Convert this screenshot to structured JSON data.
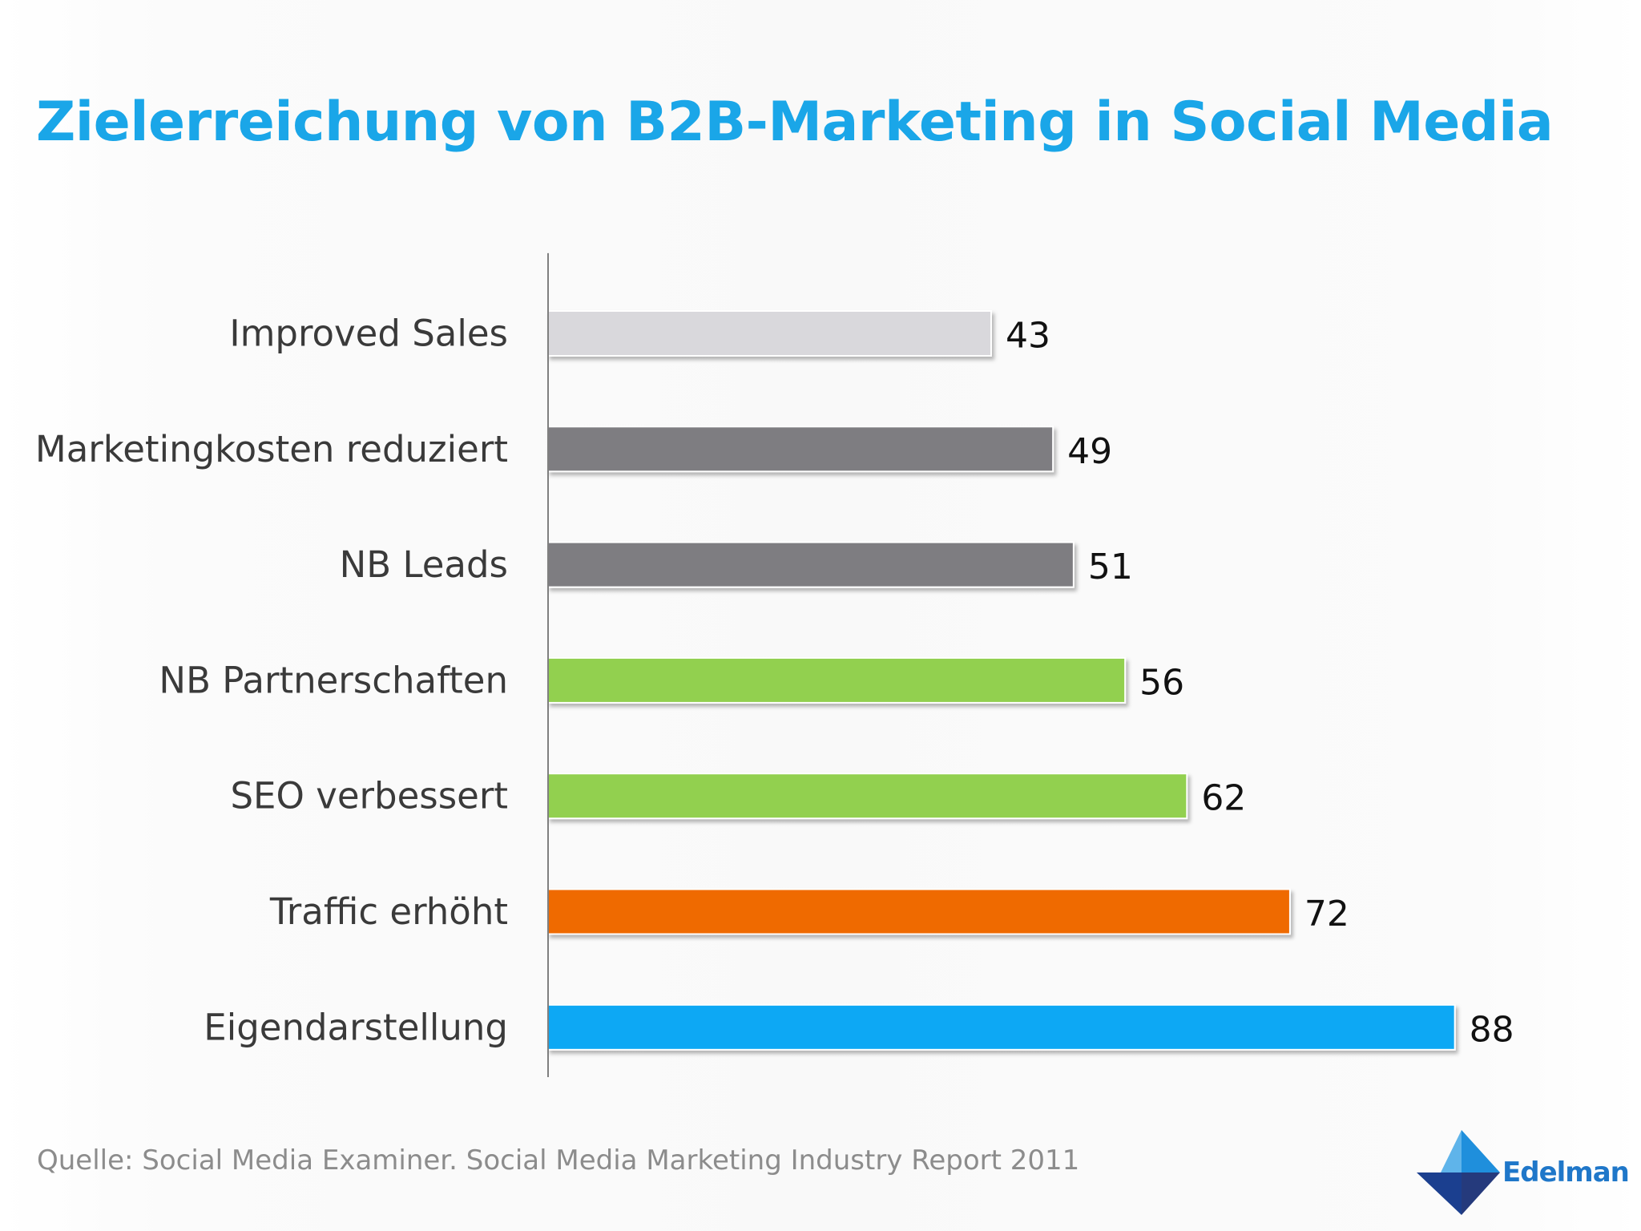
{
  "title": "Zielerreichung von B2B-Marketing in Social Media",
  "source": "Quelle: Social Media Examiner. Social Media Marketing Industry Report 2011",
  "logo": {
    "text": "Edelman"
  },
  "colors": {
    "title": "#1aa6e8",
    "light_gray": "#d9d8dc",
    "dark_gray": "#7e7d81",
    "green": "#92d050",
    "orange": "#ef6a06",
    "blue": "#0aa8f4",
    "axis": "#7f7f7f"
  },
  "chart_data": {
    "type": "bar",
    "orientation": "horizontal",
    "title": "Zielerreichung von B2B-Marketing in Social Media",
    "xlabel": "",
    "ylabel": "",
    "xlim": [
      0,
      100
    ],
    "grid": false,
    "legend": "none",
    "categories": [
      "Improved Sales",
      "Marketingkosten reduziert",
      "NB Leads",
      "NB Partnerschaften",
      "SEO verbessert",
      "Traffic erhöht",
      "Eigendarstellung"
    ],
    "values": [
      43,
      49,
      51,
      56,
      62,
      72,
      88
    ],
    "bar_colors": [
      "#d9d8dc",
      "#7e7d81",
      "#7e7d81",
      "#92d050",
      "#92d050",
      "#ef6a06",
      "#0aa8f4"
    ],
    "data_labels": [
      "43",
      "49",
      "51",
      "56",
      "62",
      "72",
      "88"
    ]
  }
}
